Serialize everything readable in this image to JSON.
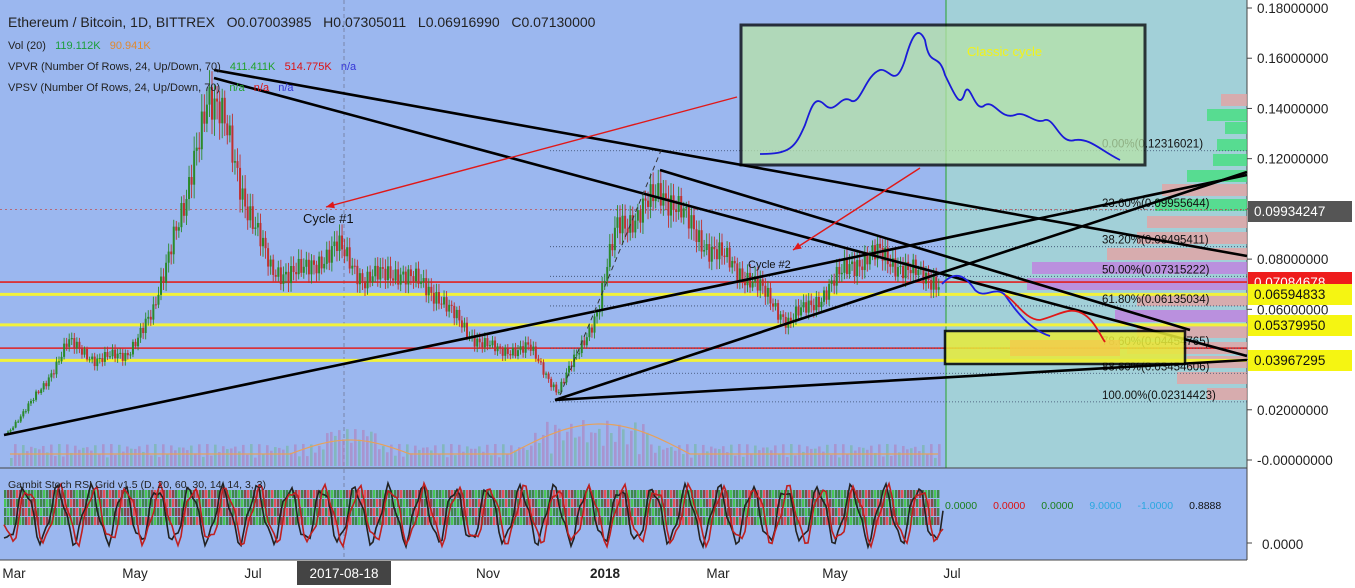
{
  "header": {
    "symbol": "Ethereum / Bitcoin, 1D, BITTREX",
    "o_label": "O",
    "o_value": "0.07003985",
    "h_label": "H",
    "h_value": "0.07305011",
    "l_label": "L",
    "l_value": "0.06916990",
    "c_label": "C",
    "c_value": "0.07130000"
  },
  "indicators": {
    "vol": {
      "label": "Vol (20)",
      "v1": "119.112K",
      "v2": "90.941K"
    },
    "vpvr": {
      "label": "VPVR (Number Of Rows, 24, Up/Down, 70)",
      "v1": "411.411K",
      "v2": "514.775K",
      "v3": "n/a"
    },
    "vpsv": {
      "label": "VPSV (Number Of Rows, 24, Up/Down, 70)",
      "v1": "n/a",
      "v2": "n/a",
      "v3": "n/a"
    }
  },
  "oscillator": {
    "label": "Gambit Stoch RSI Grid v1.5 (D, 20, 60, 30, 14, 14, 3, 3)",
    "values": [
      "0.0000",
      "0.0000",
      "0.0000",
      "9.0000",
      "-1.0000",
      "0.8888"
    ],
    "value_colors": [
      "#1a7f1a",
      "#d11",
      "#1a7f1a",
      "#2aa7e0",
      "#2aa7e0",
      "#111"
    ],
    "axis_label": "0.0000"
  },
  "annotations": {
    "classic_cycle": "Classic cycle",
    "cycle1": "Cycle #1",
    "cycle2": "Cycle #2"
  },
  "fib": [
    {
      "label": "0.00%(0.12316021)",
      "value": 0.12316021
    },
    {
      "label": "23.60%(0.09955644)",
      "value": 0.09955644
    },
    {
      "label": "38.20%(0.08495411)",
      "value": 0.08495411
    },
    {
      "label": "50.00%(0.07315222)",
      "value": 0.07315222
    },
    {
      "label": "61.80%(0.06135034)",
      "value": 0.06135034
    },
    {
      "label": "78.60%(0.04454765)",
      "value": 0.04454765
    },
    {
      "label": "88.60%(0.03454606)",
      "value": 0.03454606
    },
    {
      "label": "100.00%(0.02314423)",
      "value": 0.02314423
    }
  ],
  "price_tags": [
    {
      "label": "0.09934247",
      "value": 0.09934247,
      "bg": "#555555",
      "fg": "#ffffff"
    },
    {
      "label": "0.07084678",
      "value": 0.07084678,
      "bg": "#ee1c1c",
      "fg": "#ffffff"
    },
    {
      "label": "0.06594833",
      "value": 0.06594833,
      "bg": "#f5f512",
      "fg": "#111111"
    },
    {
      "label": "0.05379950",
      "value": 0.0537995,
      "bg": "#f5f512",
      "fg": "#111111"
    },
    {
      "label": "0.03967295",
      "value": 0.03967295,
      "bg": "#f5f512",
      "fg": "#111111"
    }
  ],
  "colors": {
    "chart_bg": "#9bb7ef",
    "projection_bg": "#a2d0d8",
    "up": "#2a8a2a",
    "down": "#c03030",
    "yellow_line": "#f2f23a",
    "red_line": "#e02020"
  },
  "chart_data": {
    "type": "candlestick",
    "title": "Ethereum / Bitcoin, 1D, BITTREX",
    "xlabel": "",
    "ylabel": "",
    "x_ticks": [
      "Mar",
      "May",
      "Jul",
      "2017-08-18",
      "Nov",
      "2018",
      "Mar",
      "May",
      "Jul"
    ],
    "highlighted_x_tick": "2017-08-18",
    "y_ticks": [
      0.18,
      0.16,
      0.14,
      0.12,
      0.1,
      0.08,
      0.06,
      0.04,
      0.02,
      0.0
    ],
    "y_tick_labels": [
      "0.18000000",
      "0.16000000",
      "0.14000000",
      "0.12000000",
      "0.10000000",
      "0.08000000",
      "0.06000000",
      "0.04000000",
      "0.02000000",
      "-0.00000000"
    ],
    "ylim": [
      -0.002,
      0.182
    ],
    "series": [
      {
        "name": "price",
        "approx_close": [
          {
            "date": "2017-03-01",
            "value": 0.011
          },
          {
            "date": "2017-03-20",
            "value": 0.03
          },
          {
            "date": "2017-04-01",
            "value": 0.047
          },
          {
            "date": "2017-04-15",
            "value": 0.04
          },
          {
            "date": "2017-05-01",
            "value": 0.042
          },
          {
            "date": "2017-05-15",
            "value": 0.058
          },
          {
            "date": "2017-05-25",
            "value": 0.09
          },
          {
            "date": "2017-06-01",
            "value": 0.1
          },
          {
            "date": "2017-06-12",
            "value": 0.148
          },
          {
            "date": "2017-06-20",
            "value": 0.135
          },
          {
            "date": "2017-07-01",
            "value": 0.105
          },
          {
            "date": "2017-07-15",
            "value": 0.075
          },
          {
            "date": "2017-08-01",
            "value": 0.075
          },
          {
            "date": "2017-08-18",
            "value": 0.085
          },
          {
            "date": "2017-09-01",
            "value": 0.072
          },
          {
            "date": "2017-09-20",
            "value": 0.075
          },
          {
            "date": "2017-10-10",
            "value": 0.065
          },
          {
            "date": "2017-10-25",
            "value": 0.05
          },
          {
            "date": "2017-11-10",
            "value": 0.043
          },
          {
            "date": "2017-11-25",
            "value": 0.045
          },
          {
            "date": "2017-12-10",
            "value": 0.027
          },
          {
            "date": "2017-12-20",
            "value": 0.042
          },
          {
            "date": "2017-12-31",
            "value": 0.06
          },
          {
            "date": "2018-01-10",
            "value": 0.095
          },
          {
            "date": "2018-01-20",
            "value": 0.096
          },
          {
            "date": "2018-02-01",
            "value": 0.108
          },
          {
            "date": "2018-02-10",
            "value": 0.1
          },
          {
            "date": "2018-02-25",
            "value": 0.085
          },
          {
            "date": "2018-03-10",
            "value": 0.078
          },
          {
            "date": "2018-03-25",
            "value": 0.068
          },
          {
            "date": "2018-04-08",
            "value": 0.055
          },
          {
            "date": "2018-04-25",
            "value": 0.065
          },
          {
            "date": "2018-05-10",
            "value": 0.078
          },
          {
            "date": "2018-05-25",
            "value": 0.082
          },
          {
            "date": "2018-06-10",
            "value": 0.075
          },
          {
            "date": "2018-06-25",
            "value": 0.071
          }
        ]
      }
    ],
    "horizontal_levels": [
      {
        "value": 0.06594833,
        "color": "yellow"
      },
      {
        "value": 0.0537995,
        "color": "yellow"
      },
      {
        "value": 0.03967295,
        "color": "yellow"
      },
      {
        "value": 0.04454765,
        "color": "red"
      },
      {
        "value": 0.07084678,
        "color": "red"
      }
    ],
    "grid": false,
    "legend": "none"
  }
}
